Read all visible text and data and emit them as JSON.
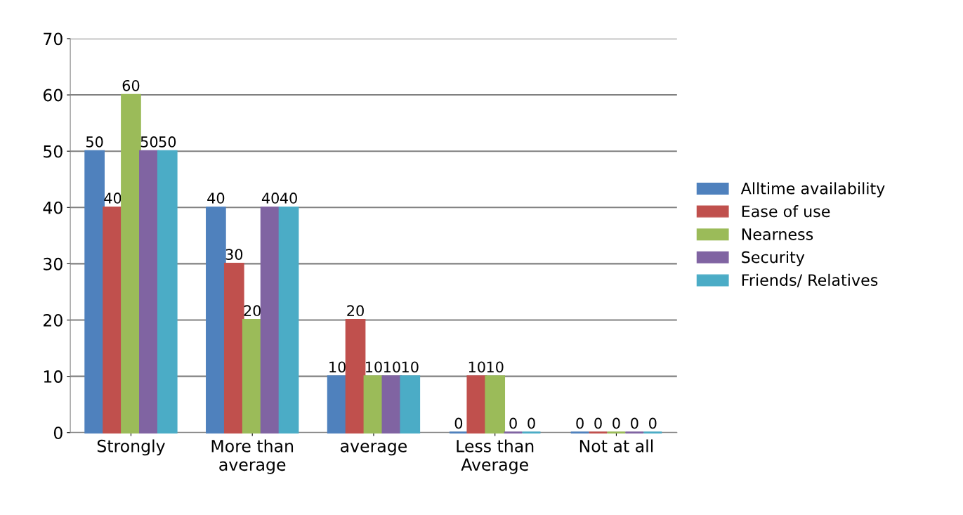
{
  "chart_data": {
    "type": "bar",
    "categories": [
      "Strongly",
      "More than\naverage",
      "average",
      "Less than\nAverage",
      "Not at all"
    ],
    "series": [
      {
        "name": "Alltime availability",
        "color": "#4f81bd",
        "values": [
          50,
          40,
          10,
          0,
          0
        ]
      },
      {
        "name": "Ease of use",
        "color": "#c0504d",
        "values": [
          40,
          30,
          20,
          10,
          0
        ]
      },
      {
        "name": "Nearness",
        "color": "#9bbb59",
        "values": [
          60,
          20,
          10,
          10,
          0
        ]
      },
      {
        "name": "Security",
        "color": "#8064a2",
        "values": [
          50,
          40,
          10,
          0,
          0
        ]
      },
      {
        "name": "Friends/ Relatives",
        "color": "#4bacc6",
        "values": [
          50,
          40,
          10,
          0,
          0
        ]
      }
    ],
    "ylim": [
      0,
      70
    ],
    "yticks": [
      0,
      10,
      20,
      30,
      40,
      50,
      60,
      70
    ],
    "grid": "y",
    "legend": "right",
    "data_labels": true
  }
}
